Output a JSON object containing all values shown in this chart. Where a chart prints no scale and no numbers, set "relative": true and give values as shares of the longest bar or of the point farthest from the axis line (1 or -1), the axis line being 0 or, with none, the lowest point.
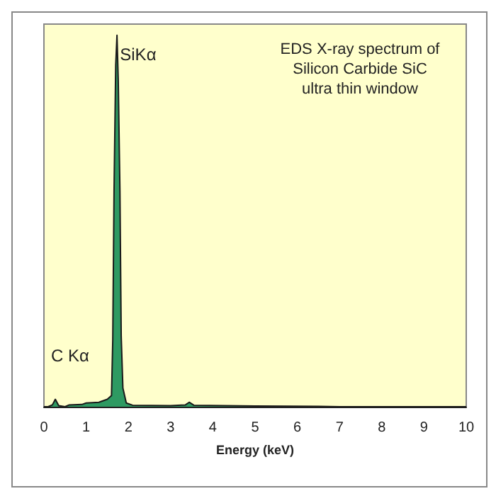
{
  "chart_data": {
    "type": "area",
    "title": "EDS X-ray spectrum of\nSilicon Carbide SiC\nultra thin window",
    "xlabel": "Energy (keV)",
    "relative": true,
    "x": [
      0,
      0.1,
      0.2,
      0.27,
      0.35,
      0.5,
      0.6,
      0.9,
      1.0,
      1.3,
      1.5,
      1.6,
      1.63,
      1.66,
      1.7,
      1.73,
      1.76,
      1.8,
      1.83,
      1.87,
      1.95,
      2.1,
      3.0,
      3.35,
      3.44,
      3.55,
      5.0,
      6.5,
      7.0,
      10
    ],
    "series": [
      {
        "color": "#2e9a62",
        "values": [
          0,
          0,
          0.005,
          0.02,
          0.003,
          0,
          0.005,
          0.006,
          0.01,
          0.012,
          0.02,
          0.03,
          0.18,
          0.58,
          0.92,
          1.0,
          0.88,
          0.58,
          0.19,
          0.05,
          0.01,
          0.004,
          0.003,
          0.005,
          0.012,
          0.004,
          0.002,
          0.001,
          0,
          0
        ]
      }
    ],
    "xlim": [
      0,
      10
    ],
    "xticks": [
      0,
      1,
      2,
      3,
      4,
      5,
      6,
      7,
      8,
      9,
      10
    ],
    "grid": false,
    "annotations": [
      {
        "text": "SiKα",
        "x": 1.8,
        "y": 0.97
      },
      "C Kα"
    ]
  }
}
